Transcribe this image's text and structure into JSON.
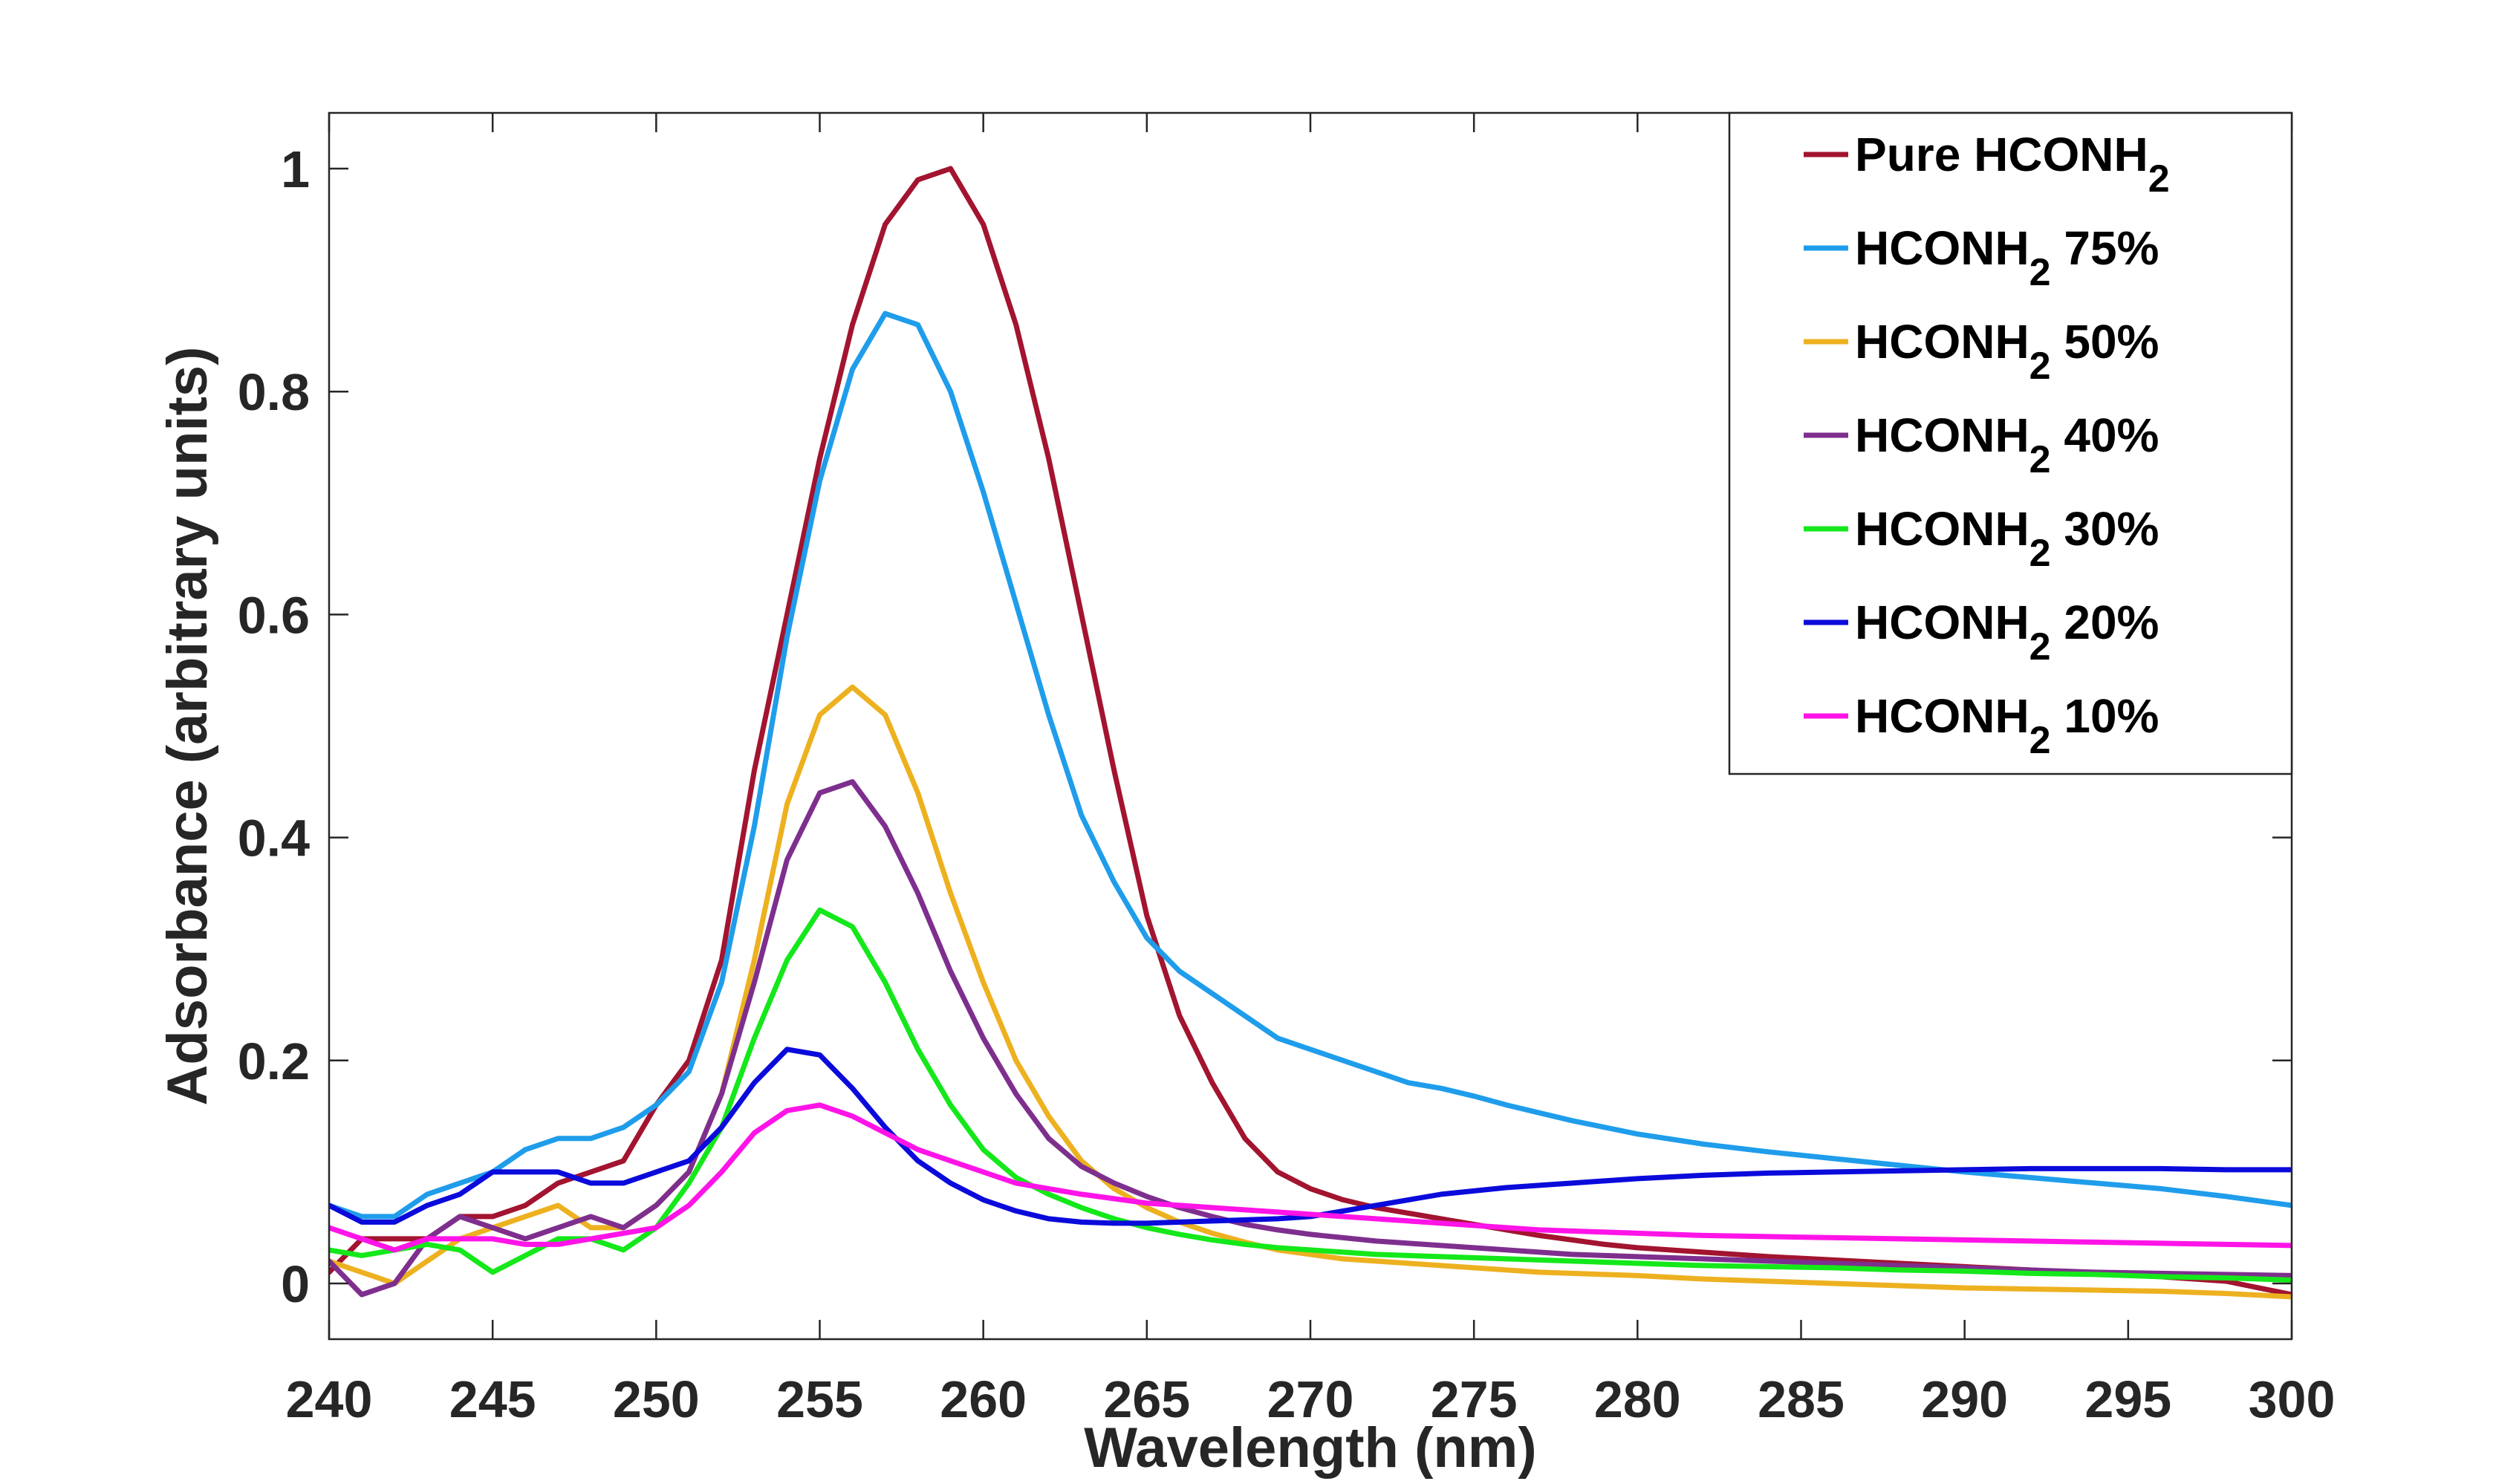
{
  "chart_data": {
    "type": "line",
    "title": "",
    "xlabel": "Wavelength (nm)",
    "ylabel": "Adsorbance (arbitrary units)",
    "xlim": [
      240,
      300
    ],
    "ylim": [
      -0.05,
      1.05
    ],
    "xticks": [
      240,
      245,
      250,
      255,
      260,
      265,
      270,
      275,
      280,
      285,
      290,
      295,
      300
    ],
    "xtick_labels": [
      "240",
      "245",
      "250",
      "255",
      "260",
      "265",
      "270",
      "275",
      "280",
      "285",
      "290",
      "295",
      "300"
    ],
    "yticks": [
      0,
      0.2,
      0.4,
      0.6,
      0.8,
      1
    ],
    "ytick_labels": [
      "0",
      "0.2",
      "0.4",
      "0.6",
      "0.8",
      "1"
    ],
    "grid": false,
    "legend_position": "top-right",
    "x": [
      240,
      241,
      242,
      243,
      244,
      245,
      246,
      247,
      248,
      249,
      250,
      251,
      252,
      253,
      254,
      255,
      256,
      257,
      258,
      259,
      260,
      261,
      262,
      263,
      264,
      265,
      266,
      267,
      268,
      269,
      270,
      271,
      272,
      273,
      274,
      275,
      276,
      277,
      278,
      279,
      280,
      282,
      284,
      286,
      288,
      290,
      292,
      294,
      296,
      298,
      300
    ],
    "series": [
      {
        "name": "Pure HCONH2",
        "legend": {
          "prefix": "Pure HCONH",
          "sub": "2",
          "suffix": ""
        },
        "color": "#A2142F",
        "values": [
          0.01,
          0.04,
          0.04,
          0.04,
          0.06,
          0.06,
          0.07,
          0.09,
          0.1,
          0.11,
          0.16,
          0.2,
          0.29,
          0.46,
          0.6,
          0.74,
          0.86,
          0.95,
          0.99,
          1.0,
          0.95,
          0.86,
          0.74,
          0.6,
          0.46,
          0.33,
          0.24,
          0.18,
          0.13,
          0.1,
          0.085,
          0.075,
          0.068,
          0.063,
          0.058,
          0.053,
          0.048,
          0.043,
          0.039,
          0.035,
          0.032,
          0.028,
          0.024,
          0.021,
          0.018,
          0.015,
          0.012,
          0.009,
          0.006,
          0.002,
          -0.01
        ]
      },
      {
        "name": "HCONH2 75%",
        "legend": {
          "prefix": "HCONH",
          "sub": "2",
          "suffix": " 75%"
        },
        "color": "#1F9DEB",
        "values": [
          0.07,
          0.06,
          0.06,
          0.08,
          0.09,
          0.1,
          0.12,
          0.13,
          0.13,
          0.14,
          0.16,
          0.19,
          0.27,
          0.41,
          0.58,
          0.72,
          0.82,
          0.87,
          0.86,
          0.8,
          0.71,
          0.61,
          0.51,
          0.42,
          0.36,
          0.31,
          0.28,
          0.26,
          0.24,
          0.22,
          0.21,
          0.2,
          0.19,
          0.18,
          0.175,
          0.168,
          0.16,
          0.153,
          0.146,
          0.14,
          0.134,
          0.125,
          0.118,
          0.112,
          0.106,
          0.1,
          0.095,
          0.09,
          0.085,
          0.078,
          0.07
        ]
      },
      {
        "name": "HCONH2 50%",
        "legend": {
          "prefix": "HCONH",
          "sub": "2",
          "suffix": " 50%"
        },
        "color": "#EDB120",
        "values": [
          0.02,
          0.01,
          0.0,
          0.02,
          0.04,
          0.05,
          0.06,
          0.07,
          0.05,
          0.05,
          0.07,
          0.1,
          0.17,
          0.29,
          0.43,
          0.51,
          0.535,
          0.51,
          0.44,
          0.35,
          0.27,
          0.2,
          0.15,
          0.11,
          0.085,
          0.068,
          0.055,
          0.045,
          0.037,
          0.03,
          0.026,
          0.022,
          0.02,
          0.018,
          0.016,
          0.014,
          0.012,
          0.01,
          0.009,
          0.008,
          0.007,
          0.004,
          0.002,
          0.0,
          -0.002,
          -0.004,
          -0.005,
          -0.006,
          -0.007,
          -0.009,
          -0.012
        ]
      },
      {
        "name": "HCONH2 40%",
        "legend": {
          "prefix": "HCONH",
          "sub": "2",
          "suffix": " 40%"
        },
        "color": "#7E2F8E",
        "values": [
          0.02,
          -0.01,
          0.0,
          0.04,
          0.06,
          0.05,
          0.04,
          0.05,
          0.06,
          0.05,
          0.07,
          0.1,
          0.17,
          0.27,
          0.38,
          0.44,
          0.45,
          0.41,
          0.35,
          0.28,
          0.22,
          0.17,
          0.13,
          0.105,
          0.09,
          0.078,
          0.068,
          0.06,
          0.053,
          0.048,
          0.044,
          0.041,
          0.038,
          0.036,
          0.034,
          0.032,
          0.03,
          0.028,
          0.026,
          0.025,
          0.024,
          0.022,
          0.02,
          0.018,
          0.016,
          0.014,
          0.012,
          0.01,
          0.009,
          0.008,
          0.007
        ]
      },
      {
        "name": "HCONH2 30%",
        "legend": {
          "prefix": "HCONH",
          "sub": "2",
          "suffix": " 30%"
        },
        "color": "#14E81A",
        "values": [
          0.03,
          0.025,
          0.03,
          0.035,
          0.03,
          0.01,
          0.025,
          0.04,
          0.04,
          0.03,
          0.05,
          0.09,
          0.14,
          0.22,
          0.29,
          0.335,
          0.32,
          0.27,
          0.21,
          0.16,
          0.12,
          0.095,
          0.08,
          0.068,
          0.058,
          0.05,
          0.044,
          0.039,
          0.035,
          0.032,
          0.03,
          0.028,
          0.026,
          0.025,
          0.024,
          0.023,
          0.022,
          0.021,
          0.02,
          0.019,
          0.018,
          0.016,
          0.015,
          0.014,
          0.012,
          0.011,
          0.009,
          0.008,
          0.006,
          0.005,
          0.003
        ]
      },
      {
        "name": "HCONH2 20%",
        "legend": {
          "prefix": "HCONH",
          "sub": "2",
          "suffix": " 20%"
        },
        "color": "#0A0ADB",
        "values": [
          0.07,
          0.055,
          0.055,
          0.07,
          0.08,
          0.1,
          0.1,
          0.1,
          0.09,
          0.09,
          0.1,
          0.11,
          0.14,
          0.18,
          0.21,
          0.205,
          0.175,
          0.14,
          0.11,
          0.09,
          0.075,
          0.065,
          0.058,
          0.055,
          0.054,
          0.054,
          0.055,
          0.056,
          0.057,
          0.058,
          0.06,
          0.065,
          0.07,
          0.075,
          0.08,
          0.083,
          0.086,
          0.088,
          0.09,
          0.092,
          0.094,
          0.097,
          0.099,
          0.1,
          0.101,
          0.102,
          0.103,
          0.103,
          0.103,
          0.102,
          0.102
        ]
      },
      {
        "name": "HCONH2 10%",
        "legend": {
          "prefix": "HCONH",
          "sub": "2",
          "suffix": " 10%"
        },
        "color": "#FF14E8",
        "values": [
          0.05,
          0.04,
          0.03,
          0.04,
          0.04,
          0.04,
          0.035,
          0.035,
          0.04,
          0.045,
          0.05,
          0.07,
          0.1,
          0.135,
          0.155,
          0.16,
          0.15,
          0.135,
          0.12,
          0.11,
          0.1,
          0.09,
          0.085,
          0.08,
          0.076,
          0.072,
          0.07,
          0.068,
          0.066,
          0.064,
          0.062,
          0.06,
          0.058,
          0.056,
          0.054,
          0.052,
          0.05,
          0.048,
          0.047,
          0.046,
          0.045,
          0.043,
          0.042,
          0.041,
          0.04,
          0.039,
          0.038,
          0.037,
          0.036,
          0.035,
          0.034
        ]
      }
    ]
  }
}
